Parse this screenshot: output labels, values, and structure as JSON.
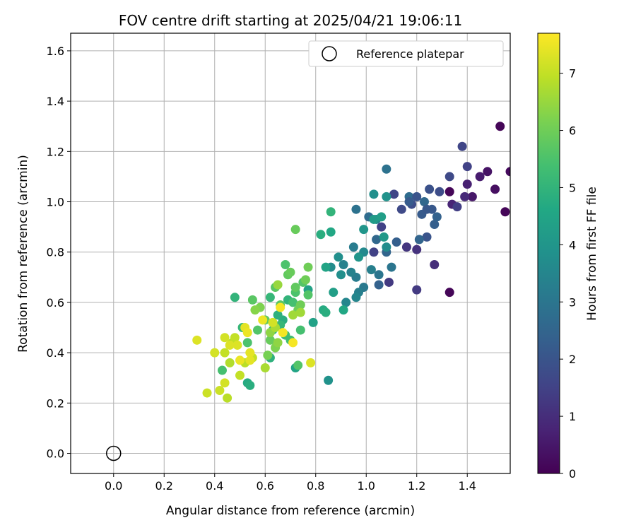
{
  "chart_data": {
    "type": "scatter",
    "title": "FOV centre drift starting at 2025/04/21 19:06:11",
    "xlabel": "Angular distance from reference (arcmin)",
    "ylabel": "Rotation from reference (arcmin)",
    "xlim": [
      -0.17,
      1.57
    ],
    "ylim": [
      -0.08,
      1.67
    ],
    "xticks": [
      0.0,
      0.2,
      0.4,
      0.6,
      0.8,
      1.0,
      1.2,
      1.4
    ],
    "xtick_labels": [
      "0.0",
      "0.2",
      "0.4",
      "0.6",
      "0.8",
      "1.0",
      "1.2",
      "1.4"
    ],
    "yticks": [
      0.0,
      0.2,
      0.4,
      0.6,
      0.8,
      1.0,
      1.2,
      1.4,
      1.6
    ],
    "ytick_labels": [
      "0.0",
      "0.2",
      "0.4",
      "0.6",
      "0.8",
      "1.0",
      "1.2",
      "1.4",
      "1.6"
    ],
    "grid": true,
    "legend": {
      "placement": "top-right",
      "entries": [
        "Reference platepar"
      ]
    },
    "reference_point": {
      "name": "Reference platepar",
      "x": 0.0,
      "y": 0.0
    },
    "colorbar": {
      "label": "Hours from first FF file",
      "colormap": "viridis",
      "range": [
        0,
        7.7
      ],
      "ticks": [
        0,
        1,
        2,
        3,
        4,
        5,
        6,
        7
      ],
      "tick_labels": [
        "0",
        "1",
        "2",
        "3",
        "4",
        "5",
        "6",
        "7"
      ]
    },
    "points": [
      [
        1.53,
        1.3,
        0.1
      ],
      [
        1.33,
        1.04,
        0.1
      ],
      [
        1.33,
        0.64,
        0.1
      ],
      [
        1.55,
        0.96,
        0.1
      ],
      [
        1.57,
        1.12,
        0.2
      ],
      [
        1.51,
        1.05,
        0.3
      ],
      [
        1.48,
        1.12,
        0.4
      ],
      [
        1.42,
        1.02,
        0.5
      ],
      [
        1.45,
        1.1,
        0.6
      ],
      [
        1.4,
        1.07,
        0.7
      ],
      [
        1.34,
        0.99,
        0.8
      ],
      [
        1.39,
        1.02,
        0.9
      ],
      [
        1.27,
        0.75,
        1.0
      ],
      [
        1.2,
        0.81,
        1.1
      ],
      [
        1.16,
        0.82,
        1.2
      ],
      [
        1.2,
        0.65,
        1.3
      ],
      [
        1.36,
        0.98,
        1.4
      ],
      [
        1.4,
        1.14,
        1.5
      ],
      [
        1.38,
        1.22,
        1.6
      ],
      [
        1.33,
        1.1,
        1.7
      ],
      [
        1.29,
        1.04,
        1.8
      ],
      [
        1.25,
        1.05,
        1.9
      ],
      [
        1.24,
        0.86,
        2.0
      ],
      [
        1.26,
        0.97,
        2.1
      ],
      [
        1.22,
        0.95,
        2.2
      ],
      [
        1.27,
        0.91,
        2.3
      ],
      [
        1.28,
        0.94,
        2.4
      ],
      [
        1.21,
        0.85,
        2.5
      ],
      [
        1.23,
        1.0,
        2.6
      ],
      [
        1.17,
        1.02,
        2.7
      ],
      [
        1.09,
        0.68,
        1.3
      ],
      [
        1.06,
        0.9,
        1.5
      ],
      [
        1.03,
        0.8,
        1.5
      ],
      [
        1.11,
        1.03,
        1.6
      ],
      [
        1.14,
        0.97,
        1.7
      ],
      [
        1.18,
        0.99,
        1.8
      ],
      [
        1.2,
        1.02,
        2.0
      ],
      [
        1.24,
        0.97,
        2.1
      ],
      [
        1.17,
        1.0,
        2.2
      ],
      [
        1.12,
        0.84,
        2.3
      ],
      [
        1.05,
        0.67,
        2.4
      ],
      [
        1.08,
        0.8,
        2.5
      ],
      [
        1.04,
        0.85,
        2.6
      ],
      [
        1.01,
        0.94,
        2.7
      ],
      [
        0.96,
        0.97,
        2.9
      ],
      [
        1.08,
        1.13,
        2.9
      ],
      [
        1.1,
        0.74,
        3.0
      ],
      [
        1.05,
        0.71,
        3.0
      ],
      [
        0.99,
        0.66,
        3.1
      ],
      [
        0.96,
        0.7,
        3.2
      ],
      [
        0.95,
        0.82,
        3.2
      ],
      [
        1.02,
        0.73,
        3.3
      ],
      [
        0.97,
        0.64,
        3.3
      ],
      [
        0.91,
        0.75,
        3.4
      ],
      [
        0.94,
        0.72,
        3.4
      ],
      [
        0.92,
        0.6,
        3.5
      ],
      [
        0.96,
        0.62,
        3.5
      ],
      [
        0.99,
        0.8,
        3.6
      ],
      [
        1.04,
        0.93,
        3.6
      ],
      [
        1.08,
        0.82,
        3.7
      ],
      [
        0.86,
        0.74,
        3.7
      ],
      [
        0.89,
        0.78,
        3.8
      ],
      [
        0.9,
        0.71,
        3.8
      ],
      [
        1.03,
        1.03,
        3.8
      ],
      [
        1.08,
        1.02,
        3.9
      ],
      [
        0.97,
        0.78,
        4.0
      ],
      [
        0.99,
        0.89,
        4.0
      ],
      [
        0.85,
        0.29,
        3.9
      ],
      [
        1.07,
        0.86,
        4.1
      ],
      [
        1.03,
        0.93,
        4.2
      ],
      [
        1.06,
        0.94,
        4.3
      ],
      [
        0.87,
        0.64,
        4.3
      ],
      [
        0.79,
        0.52,
        4.4
      ],
      [
        0.77,
        0.65,
        4.4
      ],
      [
        0.84,
        0.74,
        4.5
      ],
      [
        0.86,
        0.88,
        4.6
      ],
      [
        0.91,
        0.57,
        4.6
      ],
      [
        0.72,
        0.34,
        4.5
      ],
      [
        0.83,
        0.57,
        4.7
      ],
      [
        0.84,
        0.56,
        4.8
      ],
      [
        0.82,
        0.87,
        4.8
      ],
      [
        0.86,
        0.96,
        5.0
      ],
      [
        0.67,
        0.53,
        4.8
      ],
      [
        0.65,
        0.55,
        4.9
      ],
      [
        0.62,
        0.38,
        4.9
      ],
      [
        0.69,
        0.61,
        5.0
      ],
      [
        0.62,
        0.62,
        5.1
      ],
      [
        0.66,
        0.51,
        5.1
      ],
      [
        0.63,
        0.49,
        5.2
      ],
      [
        0.7,
        0.45,
        5.3
      ],
      [
        0.68,
        0.47,
        5.3
      ],
      [
        0.74,
        0.49,
        5.4
      ],
      [
        0.71,
        0.6,
        5.4
      ],
      [
        0.72,
        0.64,
        5.5
      ],
      [
        0.68,
        0.75,
        5.5
      ],
      [
        0.75,
        0.68,
        5.6
      ],
      [
        0.77,
        0.63,
        5.6
      ],
      [
        0.73,
        0.35,
        5.6
      ],
      [
        0.66,
        0.59,
        5.7
      ],
      [
        0.64,
        0.66,
        5.7
      ],
      [
        0.72,
        0.66,
        5.8
      ],
      [
        0.69,
        0.71,
        5.8
      ],
      [
        0.72,
        0.89,
        5.9
      ],
      [
        0.7,
        0.72,
        5.9
      ],
      [
        0.73,
        0.57,
        6.0
      ],
      [
        0.76,
        0.69,
        6.0
      ],
      [
        0.74,
        0.59,
        6.0
      ],
      [
        0.77,
        0.74,
        6.0
      ],
      [
        0.53,
        0.28,
        4.7
      ],
      [
        0.54,
        0.27,
        4.8
      ],
      [
        0.48,
        0.62,
        5.0
      ],
      [
        0.51,
        0.5,
        5.1
      ],
      [
        0.43,
        0.33,
        5.4
      ],
      [
        0.53,
        0.44,
        5.5
      ],
      [
        0.57,
        0.49,
        5.6
      ],
      [
        0.55,
        0.61,
        5.7
      ],
      [
        0.6,
        0.53,
        5.8
      ],
      [
        0.62,
        0.45,
        5.9
      ],
      [
        0.61,
        0.39,
        6.1
      ],
      [
        0.64,
        0.42,
        6.2
      ],
      [
        0.58,
        0.58,
        6.2
      ],
      [
        0.56,
        0.57,
        6.3
      ],
      [
        0.62,
        0.48,
        6.4
      ],
      [
        0.65,
        0.44,
        6.4
      ],
      [
        0.65,
        0.67,
        6.5
      ],
      [
        0.71,
        0.55,
        6.6
      ],
      [
        0.74,
        0.56,
        6.6
      ],
      [
        0.64,
        0.5,
        6.7
      ],
      [
        0.6,
        0.34,
        6.7
      ],
      [
        0.46,
        0.36,
        6.8
      ],
      [
        0.45,
        0.22,
        6.9
      ],
      [
        0.47,
        0.44,
        6.9
      ],
      [
        0.52,
        0.36,
        6.9
      ],
      [
        0.55,
        0.38,
        7.0
      ],
      [
        0.5,
        0.31,
        7.0
      ],
      [
        0.48,
        0.46,
        7.0
      ],
      [
        0.44,
        0.4,
        7.0
      ],
      [
        0.42,
        0.25,
        7.1
      ],
      [
        0.37,
        0.24,
        7.1
      ],
      [
        0.44,
        0.28,
        7.2
      ],
      [
        0.44,
        0.46,
        7.2
      ],
      [
        0.4,
        0.4,
        7.2
      ],
      [
        0.33,
        0.45,
        7.3
      ],
      [
        0.46,
        0.43,
        7.3
      ],
      [
        0.49,
        0.43,
        7.3
      ],
      [
        0.52,
        0.5,
        7.4
      ],
      [
        0.54,
        0.37,
        7.4
      ],
      [
        0.5,
        0.37,
        7.5
      ],
      [
        0.53,
        0.48,
        7.5
      ],
      [
        0.59,
        0.53,
        7.5
      ],
      [
        0.66,
        0.58,
        7.6
      ],
      [
        0.67,
        0.48,
        7.6
      ],
      [
        0.71,
        0.44,
        7.6
      ],
      [
        0.78,
        0.36,
        7.3
      ],
      [
        0.54,
        0.4,
        7.4
      ],
      [
        0.63,
        0.52,
        7.2
      ]
    ]
  }
}
